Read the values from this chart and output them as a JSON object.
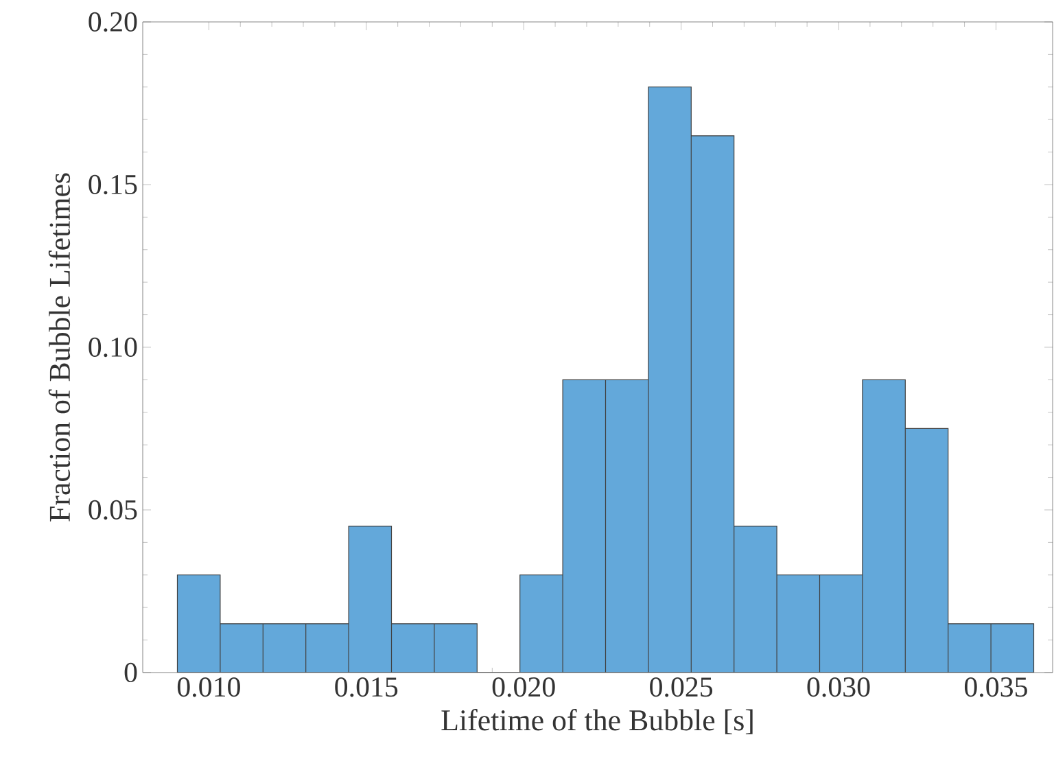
{
  "chart_data": {
    "type": "histogram",
    "xlabel": "Lifetime of the Bubble [s]",
    "ylabel": "Fraction of Bubble Lifetimes",
    "bins": [
      0.009,
      0.01036,
      0.01172,
      0.01308,
      0.01444,
      0.0158,
      0.01716,
      0.01852,
      0.01988,
      0.02124,
      0.0226,
      0.02396,
      0.02532,
      0.02668,
      0.02804,
      0.0294,
      0.03076,
      0.03212,
      0.03348,
      0.03484,
      0.0362
    ],
    "values": [
      0.03,
      0.015,
      0.015,
      0.015,
      0.045,
      0.015,
      0.015,
      0,
      0.03,
      0.09,
      0.09,
      0.18,
      0.165,
      0.045,
      0.03,
      0.03,
      0.09,
      0.075,
      0.015,
      0.015
    ],
    "color": "#63a8da",
    "xlim": [
      0.0079,
      0.0368
    ],
    "ylim": [
      0,
      0.2
    ],
    "xticks": [
      {
        "value": 0.01,
        "label": "0.010"
      },
      {
        "value": 0.015,
        "label": "0.015"
      },
      {
        "value": 0.02,
        "label": "0.020"
      },
      {
        "value": 0.025,
        "label": "0.025"
      },
      {
        "value": 0.03,
        "label": "0.030"
      },
      {
        "value": 0.035,
        "label": "0.035"
      }
    ],
    "yticks": [
      0,
      0.05,
      {
        "value": 0.1,
        "label": "0.10"
      },
      0.15,
      {
        "value": 0.2,
        "label": "0.20"
      }
    ],
    "grid": false
  }
}
